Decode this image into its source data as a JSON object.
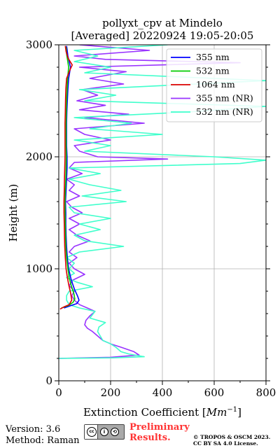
{
  "header": {
    "title_line1": "pollyxt_cpv at Mindelo",
    "title_line2": "[Averaged] 20220924 19:05-20:05"
  },
  "footer": {
    "version": "Version: 3.6",
    "method": "Method: Raman",
    "license_badge_icons": [
      "cc-icon",
      "by-icon",
      "sa-icon"
    ],
    "license_badge_text": "BY SA",
    "preliminary_line1": "Preliminary",
    "preliminary_line2": "Results.",
    "copyright_line1": "© TROPOS & OSCM 2023.",
    "copyright_line2": "CC BY SA 4.0 License."
  },
  "chart_data": {
    "type": "line",
    "orientation": "vertical-profile",
    "title": "pollyxt_cpv at Mindelo\n[Averaged] 20220924 19:05-20:05",
    "xlabel": "Extinction Coefficient [Mm^-1]",
    "ylabel": "Height (m)",
    "xlim": [
      0,
      800
    ],
    "ylim": [
      0,
      3000
    ],
    "x_ticks": [
      "0",
      "200",
      "400",
      "600",
      "800"
    ],
    "y_ticks": [
      "0",
      "1000",
      "2000",
      "3000"
    ],
    "grid": true,
    "legend_position": "top-right",
    "series": [
      {
        "name": "355 nm",
        "color": "#0000ff",
        "points": [
          [
            20,
            650
          ],
          [
            45,
            670
          ],
          [
            70,
            690
          ],
          [
            78,
            720
          ],
          [
            72,
            760
          ],
          [
            60,
            820
          ],
          [
            48,
            900
          ],
          [
            38,
            1000
          ],
          [
            33,
            1100
          ],
          [
            30,
            1200
          ],
          [
            28,
            1300
          ],
          [
            27,
            1400
          ],
          [
            27,
            1500
          ],
          [
            26,
            1600
          ],
          [
            28,
            1700
          ],
          [
            30,
            1800
          ],
          [
            32,
            1900
          ],
          [
            32,
            2000
          ],
          [
            30,
            2100
          ],
          [
            30,
            2200
          ],
          [
            30,
            2300
          ],
          [
            31,
            2400
          ],
          [
            33,
            2500
          ],
          [
            35,
            2600
          ],
          [
            38,
            2700
          ],
          [
            45,
            2800
          ],
          [
            40,
            2850
          ],
          [
            35,
            2900
          ],
          [
            32,
            2960
          ],
          [
            30,
            2990
          ]
        ]
      },
      {
        "name": "532 nm",
        "color": "#00cc00",
        "points": [
          [
            10,
            650
          ],
          [
            35,
            670
          ],
          [
            55,
            700
          ],
          [
            62,
            730
          ],
          [
            58,
            780
          ],
          [
            48,
            850
          ],
          [
            40,
            920
          ],
          [
            35,
            1000
          ],
          [
            30,
            1100
          ],
          [
            27,
            1200
          ],
          [
            26,
            1300
          ],
          [
            25,
            1400
          ],
          [
            24,
            1500
          ],
          [
            24,
            1600
          ],
          [
            25,
            1700
          ],
          [
            27,
            1800
          ],
          [
            28,
            1900
          ],
          [
            29,
            2000
          ],
          [
            28,
            2100
          ],
          [
            28,
            2200
          ],
          [
            28,
            2300
          ],
          [
            29,
            2400
          ],
          [
            30,
            2500
          ],
          [
            32,
            2600
          ],
          [
            34,
            2700
          ],
          [
            38,
            2800
          ],
          [
            34,
            2860
          ],
          [
            30,
            2920
          ],
          [
            28,
            2980
          ]
        ]
      },
      {
        "name": "1064 nm",
        "color": "#dd0000",
        "points": [
          [
            5,
            640
          ],
          [
            20,
            660
          ],
          [
            40,
            680
          ],
          [
            50,
            720
          ],
          [
            46,
            780
          ],
          [
            38,
            860
          ],
          [
            32,
            940
          ],
          [
            28,
            1000
          ],
          [
            25,
            1100
          ],
          [
            23,
            1200
          ],
          [
            22,
            1300
          ],
          [
            21,
            1400
          ],
          [
            20,
            1500
          ],
          [
            20,
            1600
          ],
          [
            21,
            1700
          ],
          [
            22,
            1800
          ],
          [
            23,
            1900
          ],
          [
            24,
            2000
          ],
          [
            24,
            2100
          ],
          [
            24,
            2200
          ],
          [
            24,
            2300
          ],
          [
            25,
            2400
          ],
          [
            26,
            2500
          ],
          [
            27,
            2600
          ],
          [
            30,
            2700
          ],
          [
            44,
            2780
          ],
          [
            52,
            2820
          ],
          [
            36,
            2880
          ],
          [
            28,
            2940
          ],
          [
            25,
            2990
          ]
        ]
      },
      {
        "name": "355 nm (NR)",
        "color": "#9933ff",
        "points": [
          [
            0,
            200
          ],
          [
            200,
            210
          ],
          [
            310,
            230
          ],
          [
            290,
            260
          ],
          [
            240,
            300
          ],
          [
            200,
            330
          ],
          [
            170,
            360
          ],
          [
            150,
            400
          ],
          [
            130,
            440
          ],
          [
            110,
            470
          ],
          [
            100,
            500
          ],
          [
            105,
            540
          ],
          [
            120,
            580
          ],
          [
            140,
            620
          ],
          [
            110,
            650
          ],
          [
            80,
            680
          ],
          [
            60,
            720
          ],
          [
            50,
            760
          ],
          [
            60,
            800
          ],
          [
            40,
            850
          ],
          [
            55,
            900
          ],
          [
            100,
            950
          ],
          [
            60,
            1000
          ],
          [
            40,
            1050
          ],
          [
            70,
            1100
          ],
          [
            40,
            1150
          ],
          [
            60,
            1200
          ],
          [
            120,
            1250
          ],
          [
            70,
            1300
          ],
          [
            40,
            1350
          ],
          [
            80,
            1400
          ],
          [
            40,
            1450
          ],
          [
            90,
            1500
          ],
          [
            50,
            1550
          ],
          [
            30,
            1600
          ],
          [
            80,
            1650
          ],
          [
            40,
            1700
          ],
          [
            60,
            1750
          ],
          [
            30,
            1800
          ],
          [
            90,
            1850
          ],
          [
            40,
            1900
          ],
          [
            60,
            1950
          ],
          [
            420,
            1980
          ],
          [
            150,
            2000
          ],
          [
            80,
            2050
          ],
          [
            60,
            2100
          ],
          [
            200,
            2150
          ],
          [
            100,
            2200
          ],
          [
            60,
            2250
          ],
          [
            330,
            2300
          ],
          [
            100,
            2350
          ],
          [
            270,
            2380
          ],
          [
            80,
            2420
          ],
          [
            180,
            2460
          ],
          [
            70,
            2500
          ],
          [
            150,
            2550
          ],
          [
            90,
            2600
          ],
          [
            250,
            2650
          ],
          [
            120,
            2700
          ],
          [
            260,
            2760
          ],
          [
            80,
            2800
          ],
          [
            700,
            2840
          ],
          [
            180,
            2870
          ],
          [
            60,
            2900
          ],
          [
            350,
            2950
          ],
          [
            80,
            3000
          ]
        ]
      },
      {
        "name": "532 nm (NR)",
        "color": "#40ffcc",
        "points": [
          [
            0,
            200
          ],
          [
            210,
            205
          ],
          [
            330,
            215
          ],
          [
            270,
            240
          ],
          [
            240,
            260
          ],
          [
            220,
            300
          ],
          [
            200,
            330
          ],
          [
            170,
            360
          ],
          [
            160,
            400
          ],
          [
            150,
            440
          ],
          [
            155,
            480
          ],
          [
            180,
            520
          ],
          [
            120,
            560
          ],
          [
            140,
            620
          ],
          [
            80,
            650
          ],
          [
            40,
            680
          ],
          [
            30,
            720
          ],
          [
            30,
            760
          ],
          [
            40,
            800
          ],
          [
            130,
            840
          ],
          [
            70,
            880
          ],
          [
            30,
            920
          ],
          [
            60,
            960
          ],
          [
            40,
            1000
          ],
          [
            60,
            1050
          ],
          [
            30,
            1100
          ],
          [
            80,
            1150
          ],
          [
            250,
            1200
          ],
          [
            100,
            1250
          ],
          [
            60,
            1300
          ],
          [
            160,
            1350
          ],
          [
            80,
            1400
          ],
          [
            200,
            1450
          ],
          [
            60,
            1500
          ],
          [
            40,
            1550
          ],
          [
            260,
            1600
          ],
          [
            90,
            1650
          ],
          [
            240,
            1700
          ],
          [
            120,
            1750
          ],
          [
            40,
            1800
          ],
          [
            160,
            1850
          ],
          [
            40,
            1900
          ],
          [
            700,
            1940
          ],
          [
            800,
            1970
          ],
          [
            600,
            2000
          ],
          [
            100,
            2050
          ],
          [
            200,
            2100
          ],
          [
            60,
            2150
          ],
          [
            400,
            2200
          ],
          [
            120,
            2250
          ],
          [
            280,
            2300
          ],
          [
            60,
            2350
          ],
          [
            500,
            2400
          ],
          [
            800,
            2450
          ],
          [
            100,
            2500
          ],
          [
            220,
            2550
          ],
          [
            80,
            2600
          ],
          [
            800,
            2680
          ],
          [
            100,
            2750
          ],
          [
            200,
            2800
          ],
          [
            60,
            2850
          ],
          [
            150,
            2900
          ],
          [
            60,
            2950
          ],
          [
            420,
            3000
          ]
        ]
      }
    ]
  }
}
